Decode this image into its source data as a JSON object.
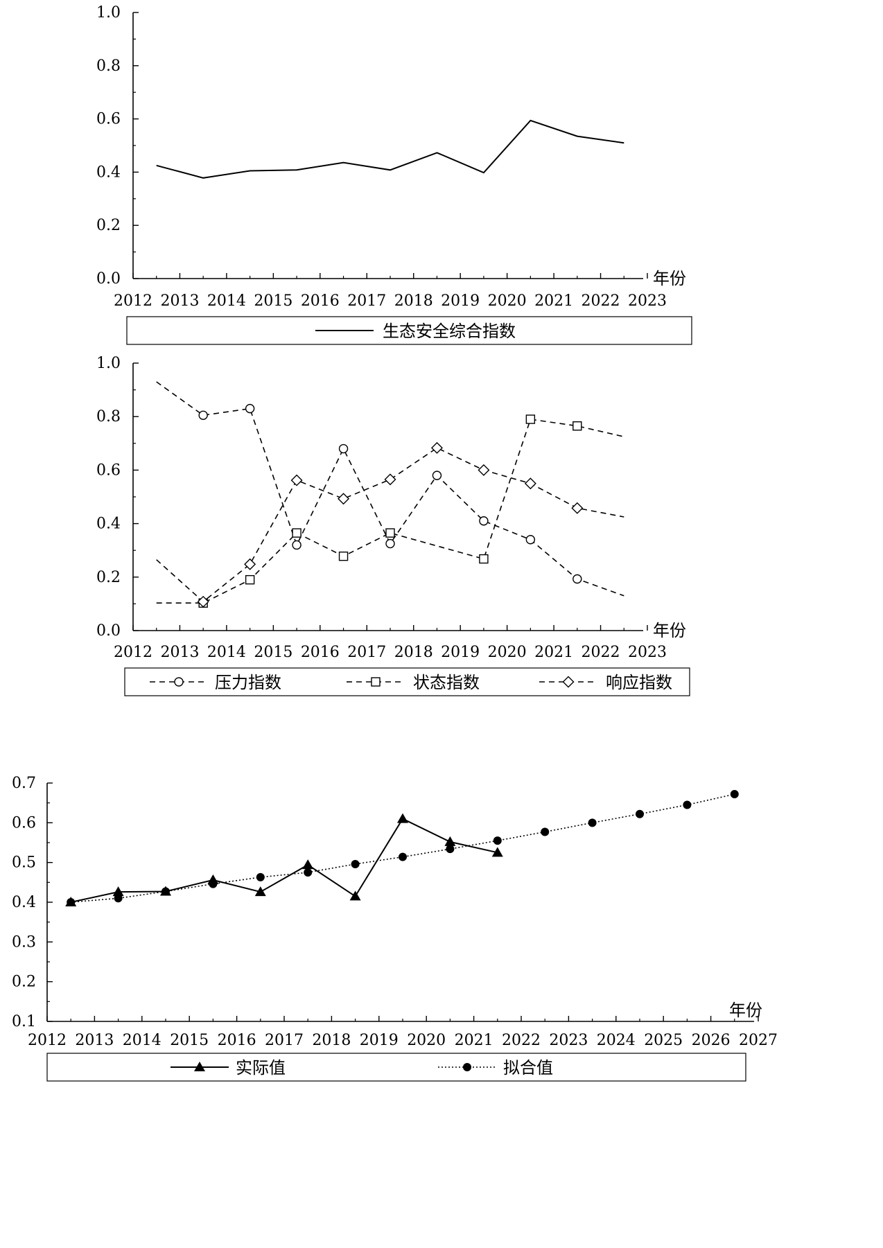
{
  "chart_data": [
    {
      "type": "line",
      "x": [
        2012.5,
        2013.5,
        2014.5,
        2015.5,
        2016.5,
        2017.5,
        2018.5,
        2019.5,
        2020.5,
        2021.5,
        2022.5
      ],
      "series": [
        {
          "name": "生态安全综合指数",
          "style": "solid",
          "marker": "none",
          "values": [
            0.425,
            0.378,
            0.405,
            0.408,
            0.436,
            0.408,
            0.473,
            0.398,
            0.594,
            0.535,
            0.51
          ]
        }
      ],
      "xlim": [
        2012,
        2023
      ],
      "ylim": [
        0.0,
        1.0
      ],
      "xticks": [
        "2012",
        "2013",
        "2014",
        "2015",
        "2016",
        "2017",
        "2018",
        "2019",
        "2020",
        "2021",
        "2022",
        "2023"
      ],
      "yticks": [
        "0.0",
        "0.2",
        "0.4",
        "0.6",
        "0.8",
        "1.0"
      ],
      "xlabel": "年份",
      "ylabel": "",
      "grid": false,
      "legend": "bottom"
    },
    {
      "type": "line",
      "x": [
        2012.5,
        2013.5,
        2014.5,
        2015.5,
        2016.5,
        2017.5,
        2018.5,
        2019.5,
        2020.5,
        2021.5,
        2022.5
      ],
      "series": [
        {
          "name": "压力指数",
          "style": "dashed",
          "marker": "circle",
          "values": [
            0.93,
            0.805,
            0.83,
            0.32,
            0.68,
            0.325,
            0.58,
            0.41,
            0.34,
            0.193,
            0.13
          ]
        },
        {
          "name": "状态指数",
          "style": "dashed",
          "marker": "square",
          "values": [
            0.103,
            0.103,
            0.19,
            0.365,
            0.278,
            0.365,
            null,
            0.268,
            0.79,
            0.765,
            0.725
          ]
        },
        {
          "name": "响应指数",
          "style": "dashed",
          "marker": "diamond",
          "values": [
            0.265,
            0.108,
            0.248,
            0.562,
            0.493,
            0.565,
            0.683,
            0.6,
            0.55,
            0.458,
            0.425
          ]
        }
      ],
      "xlim": [
        2012,
        2023
      ],
      "ylim": [
        0.0,
        1.0
      ],
      "xticks": [
        "2012",
        "2013",
        "2014",
        "2015",
        "2016",
        "2017",
        "2018",
        "2019",
        "2020",
        "2021",
        "2022",
        "2023"
      ],
      "yticks": [
        "0.0",
        "0.2",
        "0.4",
        "0.6",
        "0.8",
        "1.0"
      ],
      "xlabel": "年份",
      "ylabel": "",
      "grid": false,
      "legend": "bottom"
    },
    {
      "type": "line",
      "series": [
        {
          "name": "实际值",
          "style": "solid",
          "marker": "triangle",
          "x": [
            2012.5,
            2013.5,
            2014.5,
            2015.5,
            2016.5,
            2017.5,
            2018.5,
            2019.5,
            2020.5,
            2021.5
          ],
          "values": [
            0.4,
            0.426,
            0.427,
            0.456,
            0.426,
            0.494,
            0.415,
            0.61,
            0.552,
            0.525
          ]
        },
        {
          "name": "拟合值",
          "style": "dotted",
          "marker": "dot",
          "x": [
            2012.5,
            2013.5,
            2014.5,
            2015.5,
            2016.5,
            2017.5,
            2018.5,
            2019.5,
            2020.5,
            2021.5,
            2022.5,
            2023.5,
            2024.5,
            2025.5,
            2026.5
          ],
          "values": [
            0.4,
            0.41,
            0.427,
            0.446,
            0.463,
            0.475,
            0.496,
            0.514,
            0.534,
            0.555,
            0.577,
            0.6,
            0.622,
            0.645,
            0.672
          ]
        }
      ],
      "xlim": [
        2012,
        2027
      ],
      "ylim": [
        0.1,
        0.7
      ],
      "xticks": [
        "2012",
        "2013",
        "2014",
        "2015",
        "2016",
        "2017",
        "2018",
        "2019",
        "2020",
        "2021",
        "2022",
        "2023",
        "2024",
        "2025",
        "2026",
        "2027"
      ],
      "yticks": [
        "0.1",
        "0.2",
        "0.3",
        "0.4",
        "0.5",
        "0.6",
        "0.7"
      ],
      "xlabel": "年份",
      "ylabel": "",
      "grid": false,
      "legend": "bottom"
    }
  ]
}
